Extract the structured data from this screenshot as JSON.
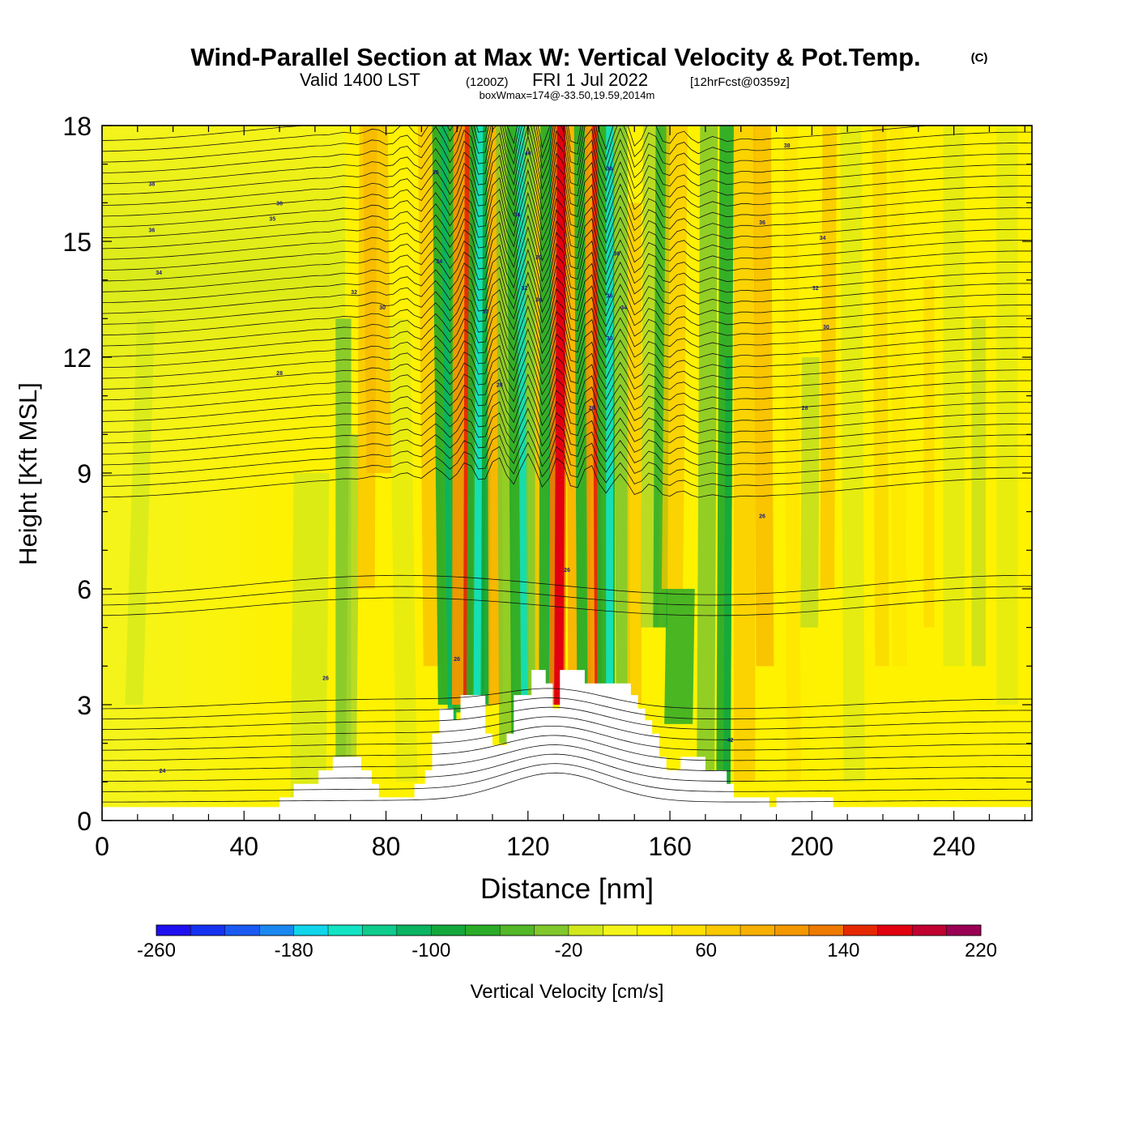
{
  "chart_data": {
    "type": "heatmap",
    "title": "Wind-Parallel Section at Max W: Vertical Velocity & Pot.Temp.",
    "title_mark": "(C)",
    "subtitle": {
      "prefix": "Valid 1400 LST",
      "utc": "(1200Z)",
      "date": "FRI 1 Jul 2022",
      "forecast": "[12hrFcst@0359z]"
    },
    "box_info": "boxWmax=174@-33.50,19.59,2014m",
    "xlabel": "Distance [nm]",
    "ylabel": "Height [Kft MSL]",
    "xlim": [
      0,
      262
    ],
    "ylim": [
      0,
      18
    ],
    "x_ticks": [
      "0",
      "40",
      "80",
      "120",
      "160",
      "200",
      "240"
    ],
    "y_ticks": [
      "0",
      "3",
      "6",
      "9",
      "12",
      "15",
      "18"
    ],
    "colorbar": {
      "label": "Vertical Velocity [cm/s]",
      "range": [
        -260,
        220
      ],
      "step": 20,
      "tick_labels": [
        "-260",
        "-180",
        "-100",
        "-20",
        "60",
        "140",
        "220"
      ],
      "colors": [
        "#1e0ff0",
        "#1432f0",
        "#1a5af2",
        "#1a88f0",
        "#16b0f0",
        "#10d6ec",
        "#12e4c4",
        "#0ecc8c",
        "#0ab460",
        "#14a83c",
        "#2aac28",
        "#52b828",
        "#80c82c",
        "#a8d62c",
        "#d2e81c",
        "#f4f41c",
        "#fff200",
        "#fde000",
        "#fac800",
        "#f7b000",
        "#f49800",
        "#ee7a00",
        "#e85400",
        "#e62800",
        "#e20010",
        "#c00030",
        "#9a0054"
      ]
    },
    "contour_variable": "Potential Temperature (C)",
    "contour_labels": [
      {
        "x": 14,
        "h": 16.5,
        "text": "38"
      },
      {
        "x": 14,
        "h": 15.3,
        "text": "36"
      },
      {
        "x": 16,
        "h": 14.2,
        "text": "34"
      },
      {
        "x": 50,
        "h": 16.0,
        "text": "36"
      },
      {
        "x": 48,
        "h": 15.6,
        "text": "35"
      },
      {
        "x": 71,
        "h": 13.7,
        "text": "32"
      },
      {
        "x": 79,
        "h": 13.3,
        "text": "30"
      },
      {
        "x": 94,
        "h": 16.8,
        "text": "35"
      },
      {
        "x": 95,
        "h": 14.5,
        "text": "34"
      },
      {
        "x": 50,
        "h": 11.6,
        "text": "28"
      },
      {
        "x": 120,
        "h": 17.3,
        "text": "40"
      },
      {
        "x": 117,
        "h": 15.7,
        "text": "36"
      },
      {
        "x": 123,
        "h": 14.6,
        "text": "30"
      },
      {
        "x": 119,
        "h": 13.8,
        "text": "32"
      },
      {
        "x": 123,
        "h": 13.5,
        "text": "34"
      },
      {
        "x": 108,
        "h": 13.2,
        "text": "30"
      },
      {
        "x": 112,
        "h": 11.3,
        "text": "28"
      },
      {
        "x": 143,
        "h": 16.9,
        "text": "36"
      },
      {
        "x": 145,
        "h": 14.7,
        "text": "36"
      },
      {
        "x": 143,
        "h": 13.6,
        "text": "36"
      },
      {
        "x": 147,
        "h": 13.3,
        "text": "34"
      },
      {
        "x": 143,
        "h": 12.5,
        "text": "30"
      },
      {
        "x": 138,
        "h": 10.7,
        "text": "28"
      },
      {
        "x": 193,
        "h": 17.5,
        "text": "38"
      },
      {
        "x": 186,
        "h": 15.5,
        "text": "36"
      },
      {
        "x": 203,
        "h": 15.1,
        "text": "34"
      },
      {
        "x": 201,
        "h": 13.8,
        "text": "32"
      },
      {
        "x": 204,
        "h": 12.8,
        "text": "30"
      },
      {
        "x": 198,
        "h": 10.7,
        "text": "28"
      },
      {
        "x": 186,
        "h": 7.9,
        "text": "26"
      },
      {
        "x": 131,
        "h": 6.5,
        "text": "26"
      },
      {
        "x": 100,
        "h": 4.2,
        "text": "26"
      },
      {
        "x": 63,
        "h": 3.7,
        "text": "26"
      },
      {
        "x": 177,
        "h": 2.1,
        "text": "42"
      },
      {
        "x": 17,
        "h": 1.3,
        "text": "24"
      }
    ]
  }
}
